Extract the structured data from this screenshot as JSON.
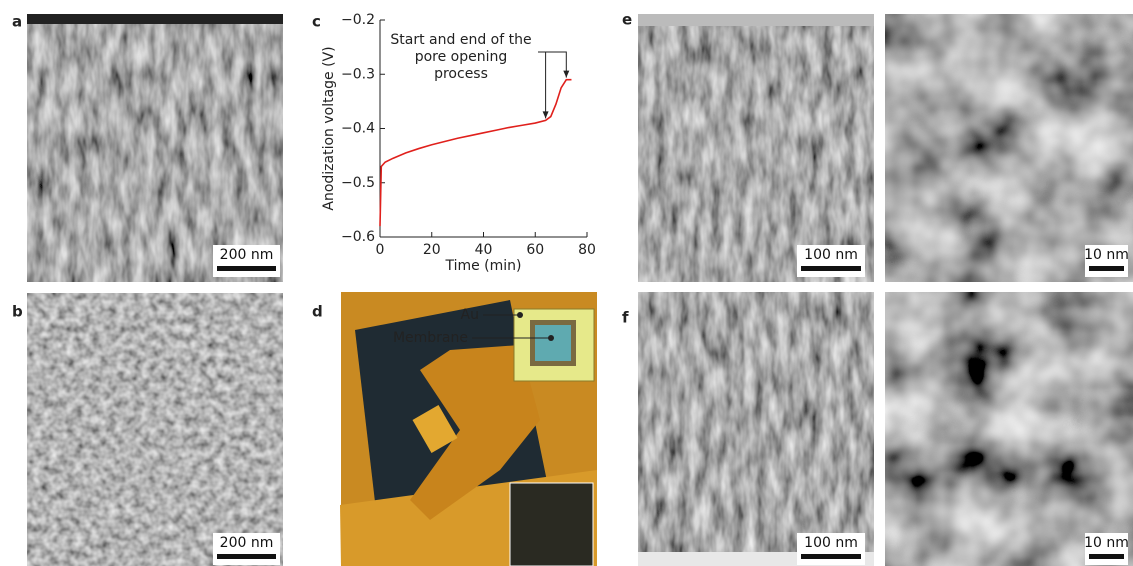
{
  "panel_labels": [
    "a",
    "b",
    "c",
    "d",
    "e",
    "f"
  ],
  "scale_bars": [
    "200 nm",
    "200 nm",
    "100 nm",
    "10 nm",
    "100 nm",
    "10 nm"
  ],
  "diagram": {
    "labels": [
      "Au",
      "Membrane"
    ]
  },
  "chart_data": {
    "type": "line",
    "xlabel": "Time (min)",
    "ylabel": "Anodization voltage (V)",
    "annotation": [
      "Start and end of the",
      "pore opening",
      "process"
    ],
    "x": [
      0,
      0.5,
      2,
      5,
      10,
      15,
      20,
      25,
      30,
      35,
      40,
      45,
      50,
      55,
      60,
      64,
      66,
      68,
      70,
      72,
      74
    ],
    "series": [
      {
        "color": "#e0201c",
        "values": [
          -0.58,
          -0.47,
          -0.462,
          -0.455,
          -0.445,
          -0.437,
          -0.43,
          -0.424,
          -0.418,
          -0.413,
          -0.408,
          -0.403,
          -0.398,
          -0.394,
          -0.39,
          -0.385,
          -0.378,
          -0.355,
          -0.325,
          -0.31,
          -0.31
        ]
      }
    ],
    "xlim": [
      0,
      80
    ],
    "ylim": [
      -0.6,
      -0.2
    ],
    "xticks": [
      0,
      20,
      40,
      60,
      80
    ],
    "yticks": [
      {
        "value": -0.6,
        "label": "−0.6"
      },
      {
        "value": -0.5,
        "label": "−0.5"
      },
      {
        "value": -0.4,
        "label": "−0.4"
      },
      {
        "value": -0.3,
        "label": "−0.3"
      },
      {
        "value": -0.2,
        "label": "−0.2"
      }
    ]
  }
}
